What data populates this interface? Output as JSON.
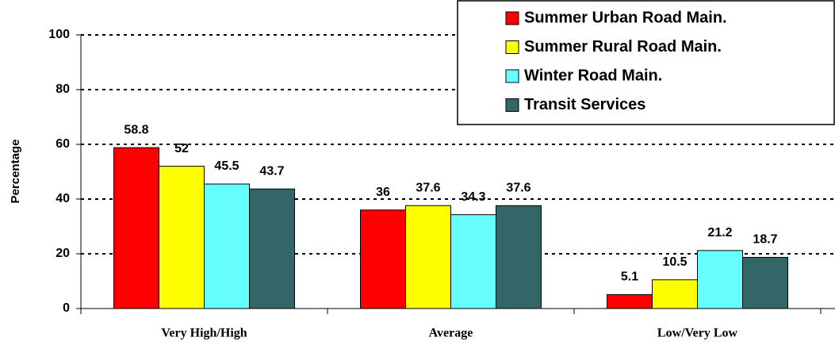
{
  "chart_data": {
    "type": "bar",
    "y_label": "Percentage",
    "categories": [
      "Very High/High",
      "Average",
      "Low/Very Low"
    ],
    "series": [
      {
        "name": "Summer Urban Road Main.",
        "color": "#ff0000",
        "values": [
          58.8,
          36,
          5.1
        ]
      },
      {
        "name": "Summer Rural Road Main.",
        "color": "#ffff00",
        "values": [
          52,
          37.6,
          10.5
        ]
      },
      {
        "name": "Winter Road Main.",
        "color": "#66ffff",
        "values": [
          45.5,
          34.3,
          21.2
        ]
      },
      {
        "name": "Transit Services",
        "color": "#336666",
        "values": [
          43.7,
          37.6,
          18.7
        ]
      }
    ],
    "ylim": [
      0,
      100
    ],
    "yticks": [
      0,
      20,
      40,
      60,
      80,
      100
    ],
    "grid": true,
    "legend": "upper right"
  }
}
